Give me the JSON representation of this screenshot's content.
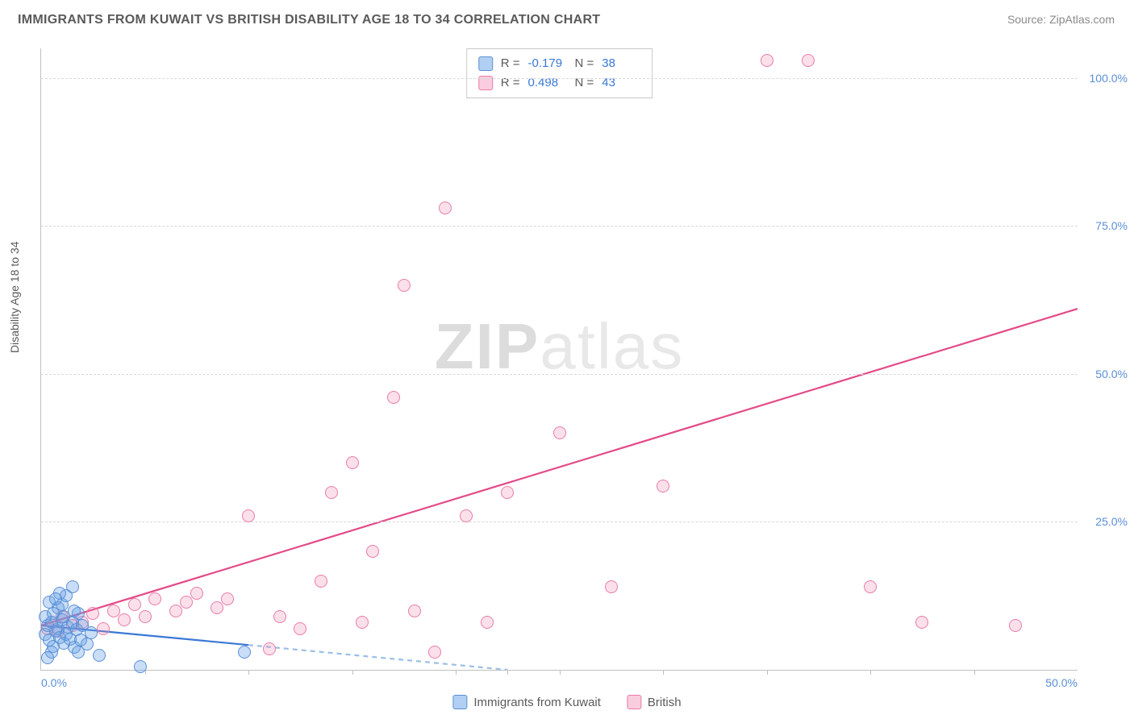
{
  "title": "IMMIGRANTS FROM KUWAIT VS BRITISH DISABILITY AGE 18 TO 34 CORRELATION CHART",
  "source": "Source: ZipAtlas.com",
  "ylabel": "Disability Age 18 to 34",
  "watermark_zip": "ZIP",
  "watermark_atlas": "atlas",
  "chart": {
    "type": "scatter",
    "xlim": [
      0,
      50
    ],
    "ylim": [
      0,
      105
    ],
    "xticks": [
      0,
      50
    ],
    "xtick_labels": [
      "0.0%",
      "50.0%"
    ],
    "xtick_minor": [
      5,
      10,
      15,
      20,
      22.5,
      25,
      30,
      35,
      40,
      45
    ],
    "yticks": [
      25,
      50,
      75,
      100
    ],
    "ytick_labels": [
      "25.0%",
      "50.0%",
      "75.0%",
      "100.0%"
    ],
    "grid_color": "#d8d8d8",
    "axis_color": "#c0c0c0",
    "background": "#ffffff",
    "tick_color": "#5a8fd6"
  },
  "series": {
    "blue": {
      "label": "Immigrants from Kuwait",
      "color_fill": "rgba(100,160,230,0.35)",
      "color_stroke": "#5a8fd6",
      "marker_size": 16,
      "R": "-0.179",
      "N": "38",
      "trend_solid": {
        "x1": 0,
        "y1": 7.5,
        "x2": 10,
        "y2": 4.2,
        "color": "#3a78d6"
      },
      "trend_dash": {
        "x1": 10,
        "y1": 4.2,
        "x2": 22.5,
        "y2": 0,
        "color": "#9bbde8"
      },
      "points": [
        {
          "x": 0.2,
          "y": 6
        },
        {
          "x": 0.3,
          "y": 7.5
        },
        {
          "x": 0.4,
          "y": 5
        },
        {
          "x": 0.5,
          "y": 8
        },
        {
          "x": 0.6,
          "y": 4
        },
        {
          "x": 0.7,
          "y": 6.5
        },
        {
          "x": 0.8,
          "y": 7
        },
        {
          "x": 0.9,
          "y": 5.5
        },
        {
          "x": 1.0,
          "y": 8.5
        },
        {
          "x": 1.1,
          "y": 4.5
        },
        {
          "x": 1.2,
          "y": 6
        },
        {
          "x": 1.3,
          "y": 7.2
        },
        {
          "x": 1.4,
          "y": 5.2
        },
        {
          "x": 1.5,
          "y": 8
        },
        {
          "x": 1.6,
          "y": 3.8
        },
        {
          "x": 1.7,
          "y": 6.8
        },
        {
          "x": 1.8,
          "y": 9.5
        },
        {
          "x": 1.9,
          "y": 5
        },
        {
          "x": 2.0,
          "y": 7.5
        },
        {
          "x": 2.2,
          "y": 4.3
        },
        {
          "x": 2.4,
          "y": 6.2
        },
        {
          "x": 1.0,
          "y": 11
        },
        {
          "x": 1.2,
          "y": 12.5
        },
        {
          "x": 1.5,
          "y": 14
        },
        {
          "x": 0.8,
          "y": 10.5
        },
        {
          "x": 0.5,
          "y": 3
        },
        {
          "x": 0.3,
          "y": 2
        },
        {
          "x": 0.6,
          "y": 9.5
        },
        {
          "x": 1.8,
          "y": 3
        },
        {
          "x": 2.8,
          "y": 2.5
        },
        {
          "x": 0.4,
          "y": 11.5
        },
        {
          "x": 0.9,
          "y": 13
        },
        {
          "x": 1.6,
          "y": 10
        },
        {
          "x": 4.8,
          "y": 0.5
        },
        {
          "x": 9.8,
          "y": 3
        },
        {
          "x": 0.2,
          "y": 9
        },
        {
          "x": 0.7,
          "y": 12
        },
        {
          "x": 1.1,
          "y": 9
        }
      ]
    },
    "pink": {
      "label": "British",
      "color_fill": "rgba(240,130,170,0.25)",
      "color_stroke": "#e87ca8",
      "marker_size": 16,
      "R": "0.498",
      "N": "43",
      "trend_solid": {
        "x1": 0,
        "y1": 7.5,
        "x2": 50,
        "y2": 61,
        "color": "#e34b88"
      },
      "points": [
        {
          "x": 0.3,
          "y": 7
        },
        {
          "x": 0.5,
          "y": 8
        },
        {
          "x": 0.8,
          "y": 6.5
        },
        {
          "x": 1.0,
          "y": 9
        },
        {
          "x": 1.5,
          "y": 7.5
        },
        {
          "x": 2.0,
          "y": 8
        },
        {
          "x": 2.5,
          "y": 9.5
        },
        {
          "x": 3.0,
          "y": 7
        },
        {
          "x": 3.5,
          "y": 10
        },
        {
          "x": 4.0,
          "y": 8.5
        },
        {
          "x": 4.5,
          "y": 11
        },
        {
          "x": 5.0,
          "y": 9
        },
        {
          "x": 5.5,
          "y": 12
        },
        {
          "x": 6.5,
          "y": 10
        },
        {
          "x": 7.0,
          "y": 11.5
        },
        {
          "x": 7.5,
          "y": 13
        },
        {
          "x": 8.5,
          "y": 10.5
        },
        {
          "x": 9.0,
          "y": 12
        },
        {
          "x": 10.0,
          "y": 26
        },
        {
          "x": 11.0,
          "y": 3.5
        },
        {
          "x": 11.5,
          "y": 9
        },
        {
          "x": 13.5,
          "y": 15
        },
        {
          "x": 14.0,
          "y": 30
        },
        {
          "x": 15.0,
          "y": 35
        },
        {
          "x": 15.5,
          "y": 8
        },
        {
          "x": 16.0,
          "y": 20
        },
        {
          "x": 17.0,
          "y": 46
        },
        {
          "x": 17.5,
          "y": 65
        },
        {
          "x": 18.0,
          "y": 10
        },
        {
          "x": 19.0,
          "y": 3
        },
        {
          "x": 19.5,
          "y": 78
        },
        {
          "x": 20.5,
          "y": 26
        },
        {
          "x": 21.5,
          "y": 8
        },
        {
          "x": 22.5,
          "y": 30
        },
        {
          "x": 25.0,
          "y": 40
        },
        {
          "x": 27.5,
          "y": 14
        },
        {
          "x": 30.0,
          "y": 31
        },
        {
          "x": 35.0,
          "y": 103
        },
        {
          "x": 37.0,
          "y": 103
        },
        {
          "x": 40.0,
          "y": 14
        },
        {
          "x": 42.5,
          "y": 8
        },
        {
          "x": 47.0,
          "y": 7.5
        },
        {
          "x": 12.5,
          "y": 7
        }
      ]
    }
  },
  "bottom_legend": [
    {
      "color": "blue",
      "label": "Immigrants from Kuwait"
    },
    {
      "color": "pink",
      "label": "British"
    }
  ]
}
